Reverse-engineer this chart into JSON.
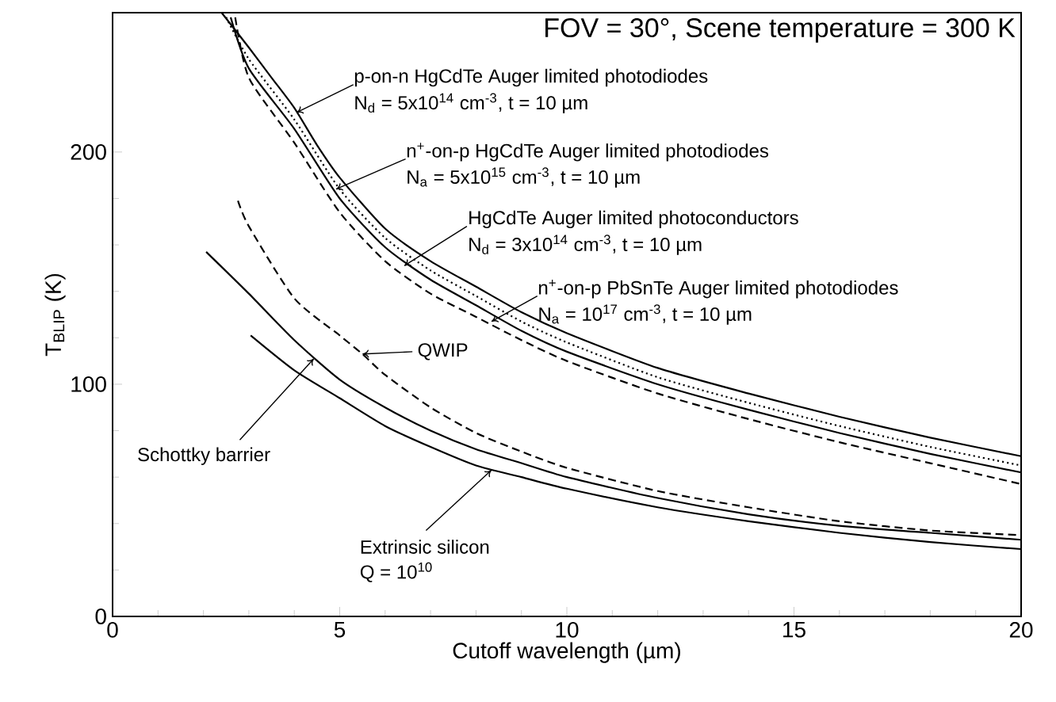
{
  "chart_data": {
    "type": "line",
    "title": "FOV = 30°, Scene temperature = 300 K",
    "xlabel": "Cutoff wavelength (µm)",
    "ylabel": "T$_{BLIP}$ (K)",
    "xlim": [
      0,
      20
    ],
    "ylim": [
      0,
      260
    ],
    "xticks": [
      0,
      5,
      10,
      15,
      20
    ],
    "yticks": [
      0,
      100,
      200
    ],
    "series": [
      {
        "color": "#000000",
        "line_style": "solid",
        "x": [
          2.4,
          3,
          3.5,
          4,
          4.5,
          5,
          6,
          7,
          8,
          9,
          10,
          12,
          14,
          16,
          18,
          20
        ],
        "values": [
          260,
          245,
          232,
          219,
          203,
          189,
          167,
          153,
          142,
          131,
          122,
          107,
          96,
          86,
          77,
          69
        ]
      },
      {
        "color": "#000000",
        "line_style": "dotted",
        "x": [
          2.5,
          3,
          4,
          5,
          6,
          7,
          8,
          9,
          10,
          12,
          14,
          16,
          18,
          20
        ],
        "values": [
          258,
          240,
          214,
          184,
          163,
          149,
          138,
          127,
          118,
          103,
          92,
          82,
          73,
          65
        ]
      },
      {
        "color": "#000000",
        "line_style": "solid",
        "x": [
          2.6,
          3,
          4,
          5,
          6,
          7,
          8,
          9,
          10,
          12,
          14,
          16,
          18,
          20
        ],
        "values": [
          258,
          236,
          210,
          180,
          159,
          145,
          134,
          123,
          114,
          100,
          89,
          79,
          70,
          62
        ]
      },
      {
        "color": "#000000",
        "line_style": "dashed",
        "x": [
          2.7,
          3,
          4,
          5,
          6,
          7,
          8,
          9,
          10,
          12,
          14,
          16,
          18,
          20
        ],
        "values": [
          258,
          232,
          204,
          174,
          153,
          139,
          129,
          119,
          110,
          96,
          85,
          75,
          66,
          57
        ]
      },
      {
        "color": "#000000",
        "line_style": "dashed",
        "x": [
          2.76,
          3,
          4,
          5,
          5.5,
          6,
          7,
          8,
          9,
          10,
          12,
          14,
          16,
          18,
          20
        ],
        "values": [
          179,
          168,
          137,
          121,
          113,
          104,
          90,
          79,
          71,
          64,
          54,
          47,
          41,
          37,
          35
        ]
      },
      {
        "color": "#000000",
        "line_style": "solid",
        "x": [
          2.06,
          3,
          4,
          5,
          6,
          7,
          8,
          9,
          10,
          12,
          14,
          16,
          18,
          20
        ],
        "values": [
          157,
          139,
          119,
          102,
          90,
          80,
          72,
          66,
          60,
          51,
          44,
          39,
          36,
          33
        ]
      },
      {
        "color": "#000000",
        "line_style": "solid",
        "x": [
          3.04,
          4,
          5,
          6,
          7,
          8,
          9,
          10,
          12,
          14,
          16,
          18,
          20
        ],
        "values": [
          121,
          106,
          94,
          82,
          73,
          65,
          60,
          55,
          47,
          41,
          36,
          32,
          29
        ]
      }
    ],
    "annotations": [
      {
        "text": "p-on-n HgCdTe Auger limited photodiodes",
        "x": 4.05,
        "y": 217
      },
      "N$_{d}$ = 5x10$^{14}$ cm$^{-3}$, t = 10 µm",
      {
        "text": "n$^{+}$-on-p HgCdTe Auger limited photodiodes",
        "x": 4.92,
        "y": 184
      },
      "N$_{a}$ = 5x10$^{15}$ cm$^{-3}$, t = 10 µm",
      {
        "text": "HgCdTe Auger limited photoconductors",
        "x": 6.42,
        "y": 151
      },
      "N$_{d}$ = 3x10$^{14}$ cm$^{-3}$, t = 10 µm",
      {
        "text": "n$^{+}$-on-p PbSnTe  Auger limited photodiodes",
        "x": 8.34,
        "y": 127
      },
      "N$_{a}$ = 10$^{17}$ cm$^{-3}$, t = 10 µm",
      {
        "text": "QWIP",
        "x": 5.5,
        "y": 113
      },
      {
        "text": "Schottky barrier",
        "x": 4.43,
        "y": 111
      },
      {
        "text": "Extrinsic silicon",
        "x": 8.34,
        "y": 63
      },
      "Q = 10$^{10}$"
    ]
  }
}
